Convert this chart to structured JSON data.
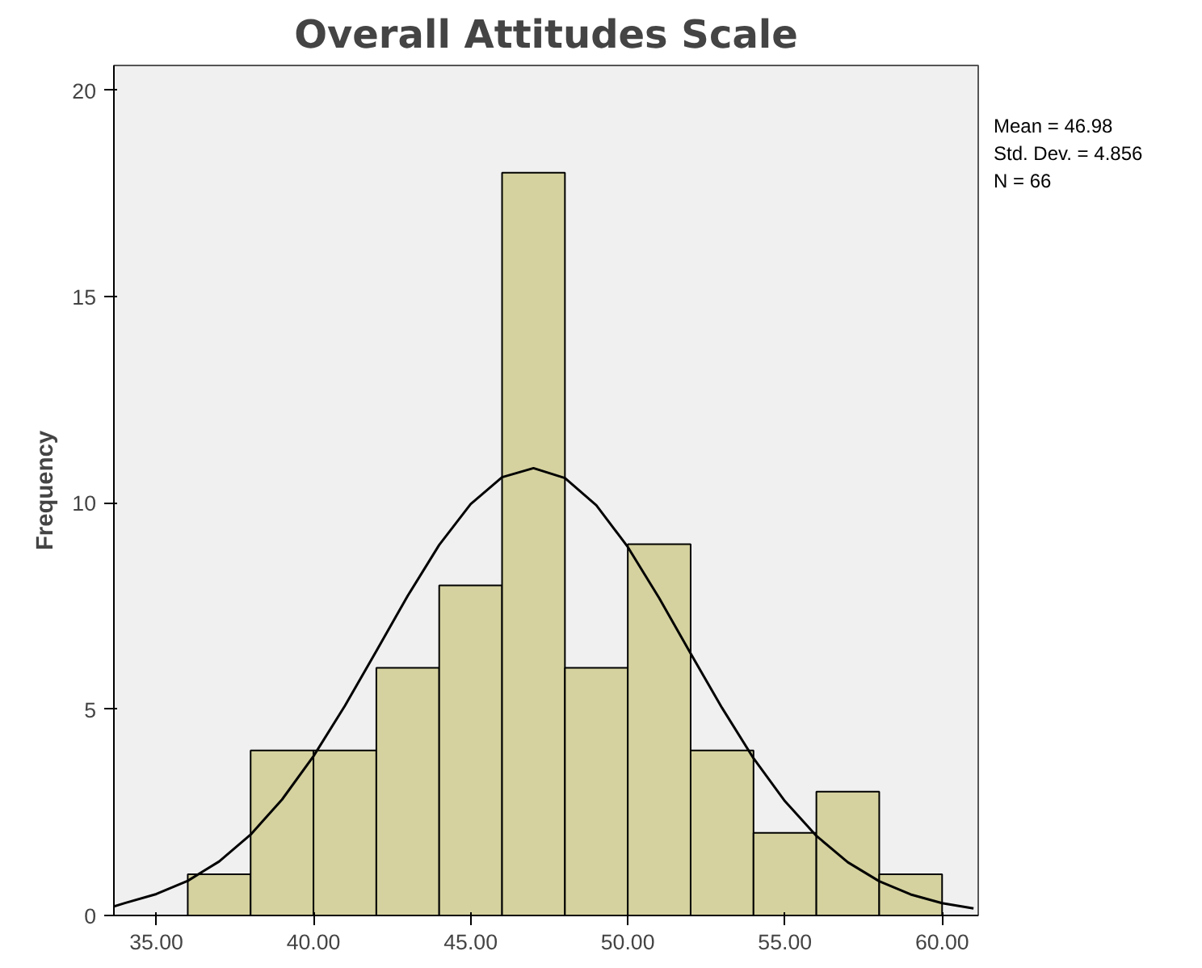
{
  "chart_data": {
    "type": "histogram",
    "title": "Overall Attitudes Scale",
    "ylabel": "Frequency",
    "bins": [
      36,
      38,
      40,
      42,
      44,
      46,
      48,
      50,
      52,
      54,
      56,
      58,
      60
    ],
    "values": [
      1,
      4,
      4,
      6,
      8,
      18,
      6,
      9,
      4,
      2,
      3,
      1
    ],
    "color": "#d5d29f",
    "series": [
      {
        "type": "line",
        "color": "#000000",
        "x": [
          33.65,
          34,
          35,
          36,
          37,
          38,
          39,
          40,
          41,
          42,
          43,
          44,
          45,
          46,
          47,
          48,
          49,
          50,
          51,
          52,
          53,
          54,
          55,
          56,
          57,
          58,
          59,
          60,
          61
        ],
        "values": [
          0.22,
          0.3,
          0.52,
          0.84,
          1.31,
          1.96,
          2.81,
          3.86,
          5.08,
          6.41,
          7.75,
          8.98,
          9.97,
          10.62,
          10.84,
          10.6,
          9.94,
          8.93,
          7.69,
          6.35,
          5.03,
          3.81,
          2.77,
          1.93,
          1.29,
          0.83,
          0.51,
          0.3,
          0.17
        ]
      }
    ],
    "xlim": [
      33.65,
      61.15
    ],
    "ylim": [
      0,
      20.6
    ],
    "xticks": [
      {
        "value": 35,
        "label": "35.00"
      },
      {
        "value": 40,
        "label": "40.00"
      },
      {
        "value": 45,
        "label": "45.00"
      },
      {
        "value": 50,
        "label": "50.00"
      },
      {
        "value": 55,
        "label": "55.00"
      },
      {
        "value": 60,
        "label": "60.00"
      }
    ],
    "yticks": [
      0,
      5,
      10,
      15,
      20
    ],
    "grid": false,
    "annotations": [
      "Mean = 46.98",
      "Std. Dev. = 4.856",
      "N = 66"
    ]
  }
}
